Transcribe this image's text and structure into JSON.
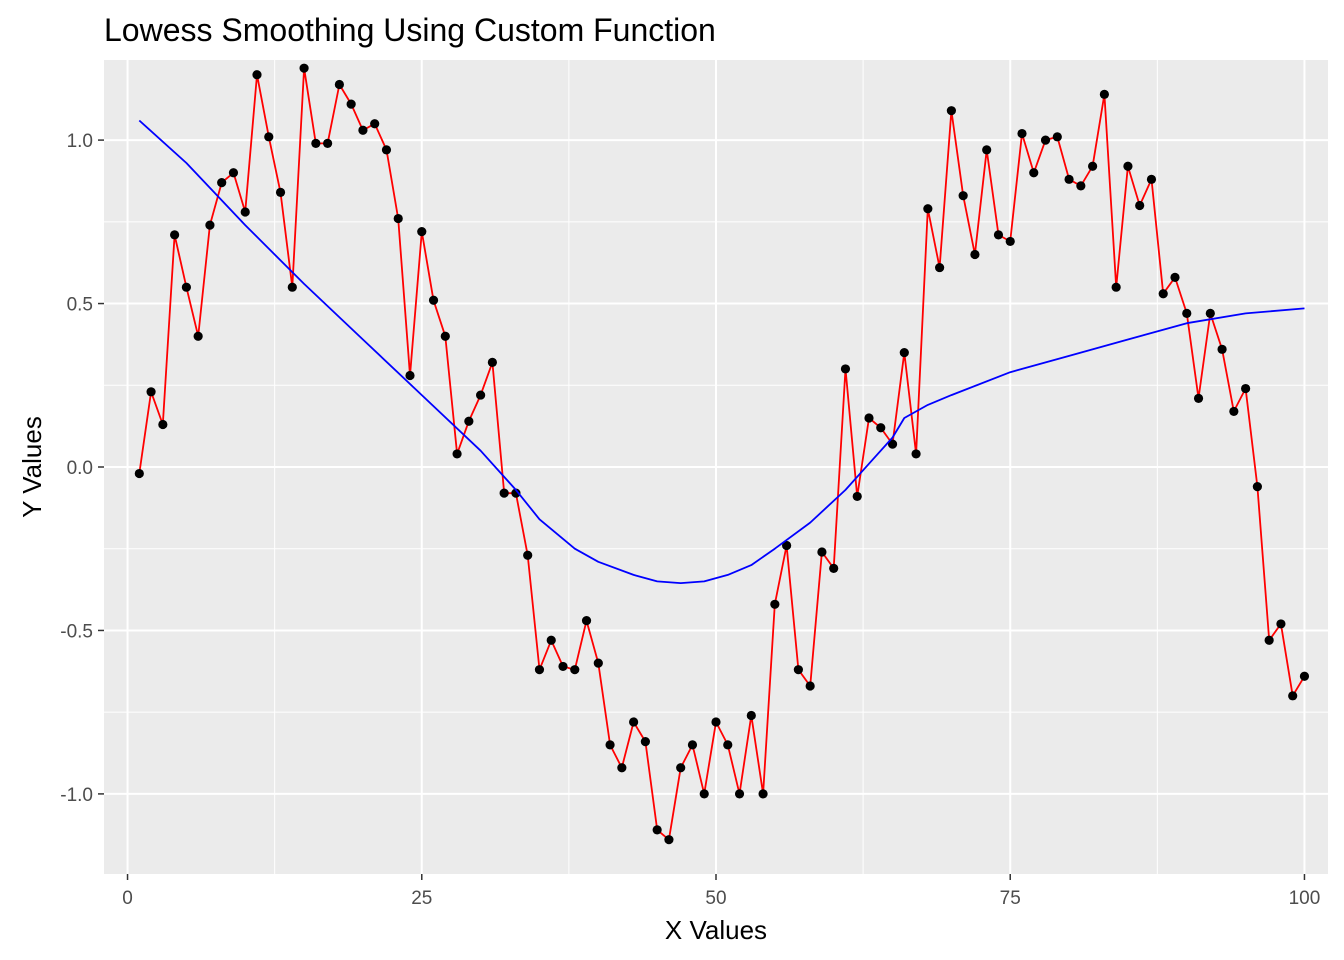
{
  "chart_data": {
    "type": "line",
    "title": "Lowess Smoothing Using Custom Function",
    "xlabel": "X Values",
    "ylabel": "Y Values",
    "xlim": [
      -2.0,
      102.0
    ],
    "ylim": [
      -1.245,
      1.245
    ],
    "x_ticks": [
      0,
      25,
      50,
      75,
      100
    ],
    "x_tick_labels": [
      "0",
      "25",
      "50",
      "75",
      "100"
    ],
    "y_ticks": [
      -1.0,
      -0.5,
      0.0,
      0.5,
      1.0
    ],
    "y_tick_labels": [
      "-1.0",
      "-0.5",
      "0.0",
      "0.5",
      "1.0"
    ],
    "grid": true,
    "legend": "none",
    "colors": {
      "panel": "#ebebeb",
      "grid": "#ffffff",
      "data_line": "#ff0000",
      "points": "#000000",
      "smooth_line": "#0000ff",
      "tick": "#333333"
    },
    "series": [
      {
        "kind": "line+points",
        "x": [
          1,
          2,
          3,
          4,
          5,
          6,
          7,
          8,
          9,
          10,
          11,
          12,
          13,
          14,
          15,
          16,
          17,
          18,
          19,
          20,
          21,
          22,
          23,
          24,
          25,
          26,
          27,
          28,
          29,
          30,
          31,
          32,
          33,
          34,
          35,
          36,
          37,
          38,
          39,
          40,
          41,
          42,
          43,
          44,
          45,
          46,
          47,
          48,
          49,
          50,
          51,
          52,
          53,
          54,
          55,
          56,
          57,
          58,
          59,
          60,
          61,
          62,
          63,
          64,
          65,
          66,
          67,
          68,
          69,
          70,
          71,
          72,
          73,
          74,
          75,
          76,
          77,
          78,
          79,
          80,
          81,
          82,
          83,
          84,
          85,
          86,
          87,
          88,
          89,
          90,
          91,
          92,
          93,
          94,
          95,
          96,
          97,
          98,
          99,
          100
        ],
        "y": [
          -0.02,
          0.23,
          0.13,
          0.71,
          0.55,
          0.4,
          0.74,
          0.87,
          0.9,
          0.78,
          1.2,
          1.01,
          0.84,
          0.55,
          1.22,
          0.99,
          0.99,
          1.17,
          1.11,
          1.03,
          1.05,
          0.97,
          0.76,
          0.28,
          0.72,
          0.51,
          0.4,
          0.04,
          0.14,
          0.22,
          0.32,
          -0.08,
          -0.08,
          -0.27,
          -0.62,
          -0.53,
          -0.61,
          -0.62,
          -0.47,
          -0.6,
          -0.85,
          -0.92,
          -0.78,
          -0.84,
          -1.11,
          -1.14,
          -0.92,
          -0.85,
          -1.0,
          -0.78,
          -0.85,
          -1.0,
          -0.76,
          -1.0,
          -0.42,
          -0.24,
          -0.62,
          -0.67,
          -0.26,
          -0.31,
          0.3,
          -0.09,
          0.15,
          0.12,
          0.07,
          0.35,
          0.04,
          0.79,
          0.61,
          1.09,
          0.83,
          0.65,
          0.97,
          0.71,
          0.69,
          1.02,
          0.9,
          1.0,
          1.01,
          0.88,
          0.86,
          0.92,
          1.14,
          0.55,
          0.92,
          0.8,
          0.88,
          0.53,
          0.58,
          0.47,
          0.21,
          0.47,
          0.36,
          0.17,
          0.24,
          -0.06,
          -0.53,
          -0.48,
          -0.7,
          -0.64
        ]
      },
      {
        "kind": "smooth",
        "x": [
          1,
          5,
          10,
          15,
          20,
          25,
          30,
          33,
          35,
          38,
          40,
          43,
          45,
          47,
          49,
          51,
          53,
          55,
          58,
          61,
          63,
          65,
          66,
          68,
          70,
          75,
          80,
          85,
          90,
          95,
          100
        ],
        "y": [
          1.06,
          0.93,
          0.74,
          0.56,
          0.39,
          0.22,
          0.05,
          -0.07,
          -0.16,
          -0.25,
          -0.29,
          -0.33,
          -0.35,
          -0.355,
          -0.35,
          -0.33,
          -0.3,
          -0.25,
          -0.17,
          -0.07,
          0.01,
          0.09,
          0.15,
          0.19,
          0.22,
          0.29,
          0.34,
          0.39,
          0.44,
          0.47,
          0.485
        ]
      }
    ]
  }
}
